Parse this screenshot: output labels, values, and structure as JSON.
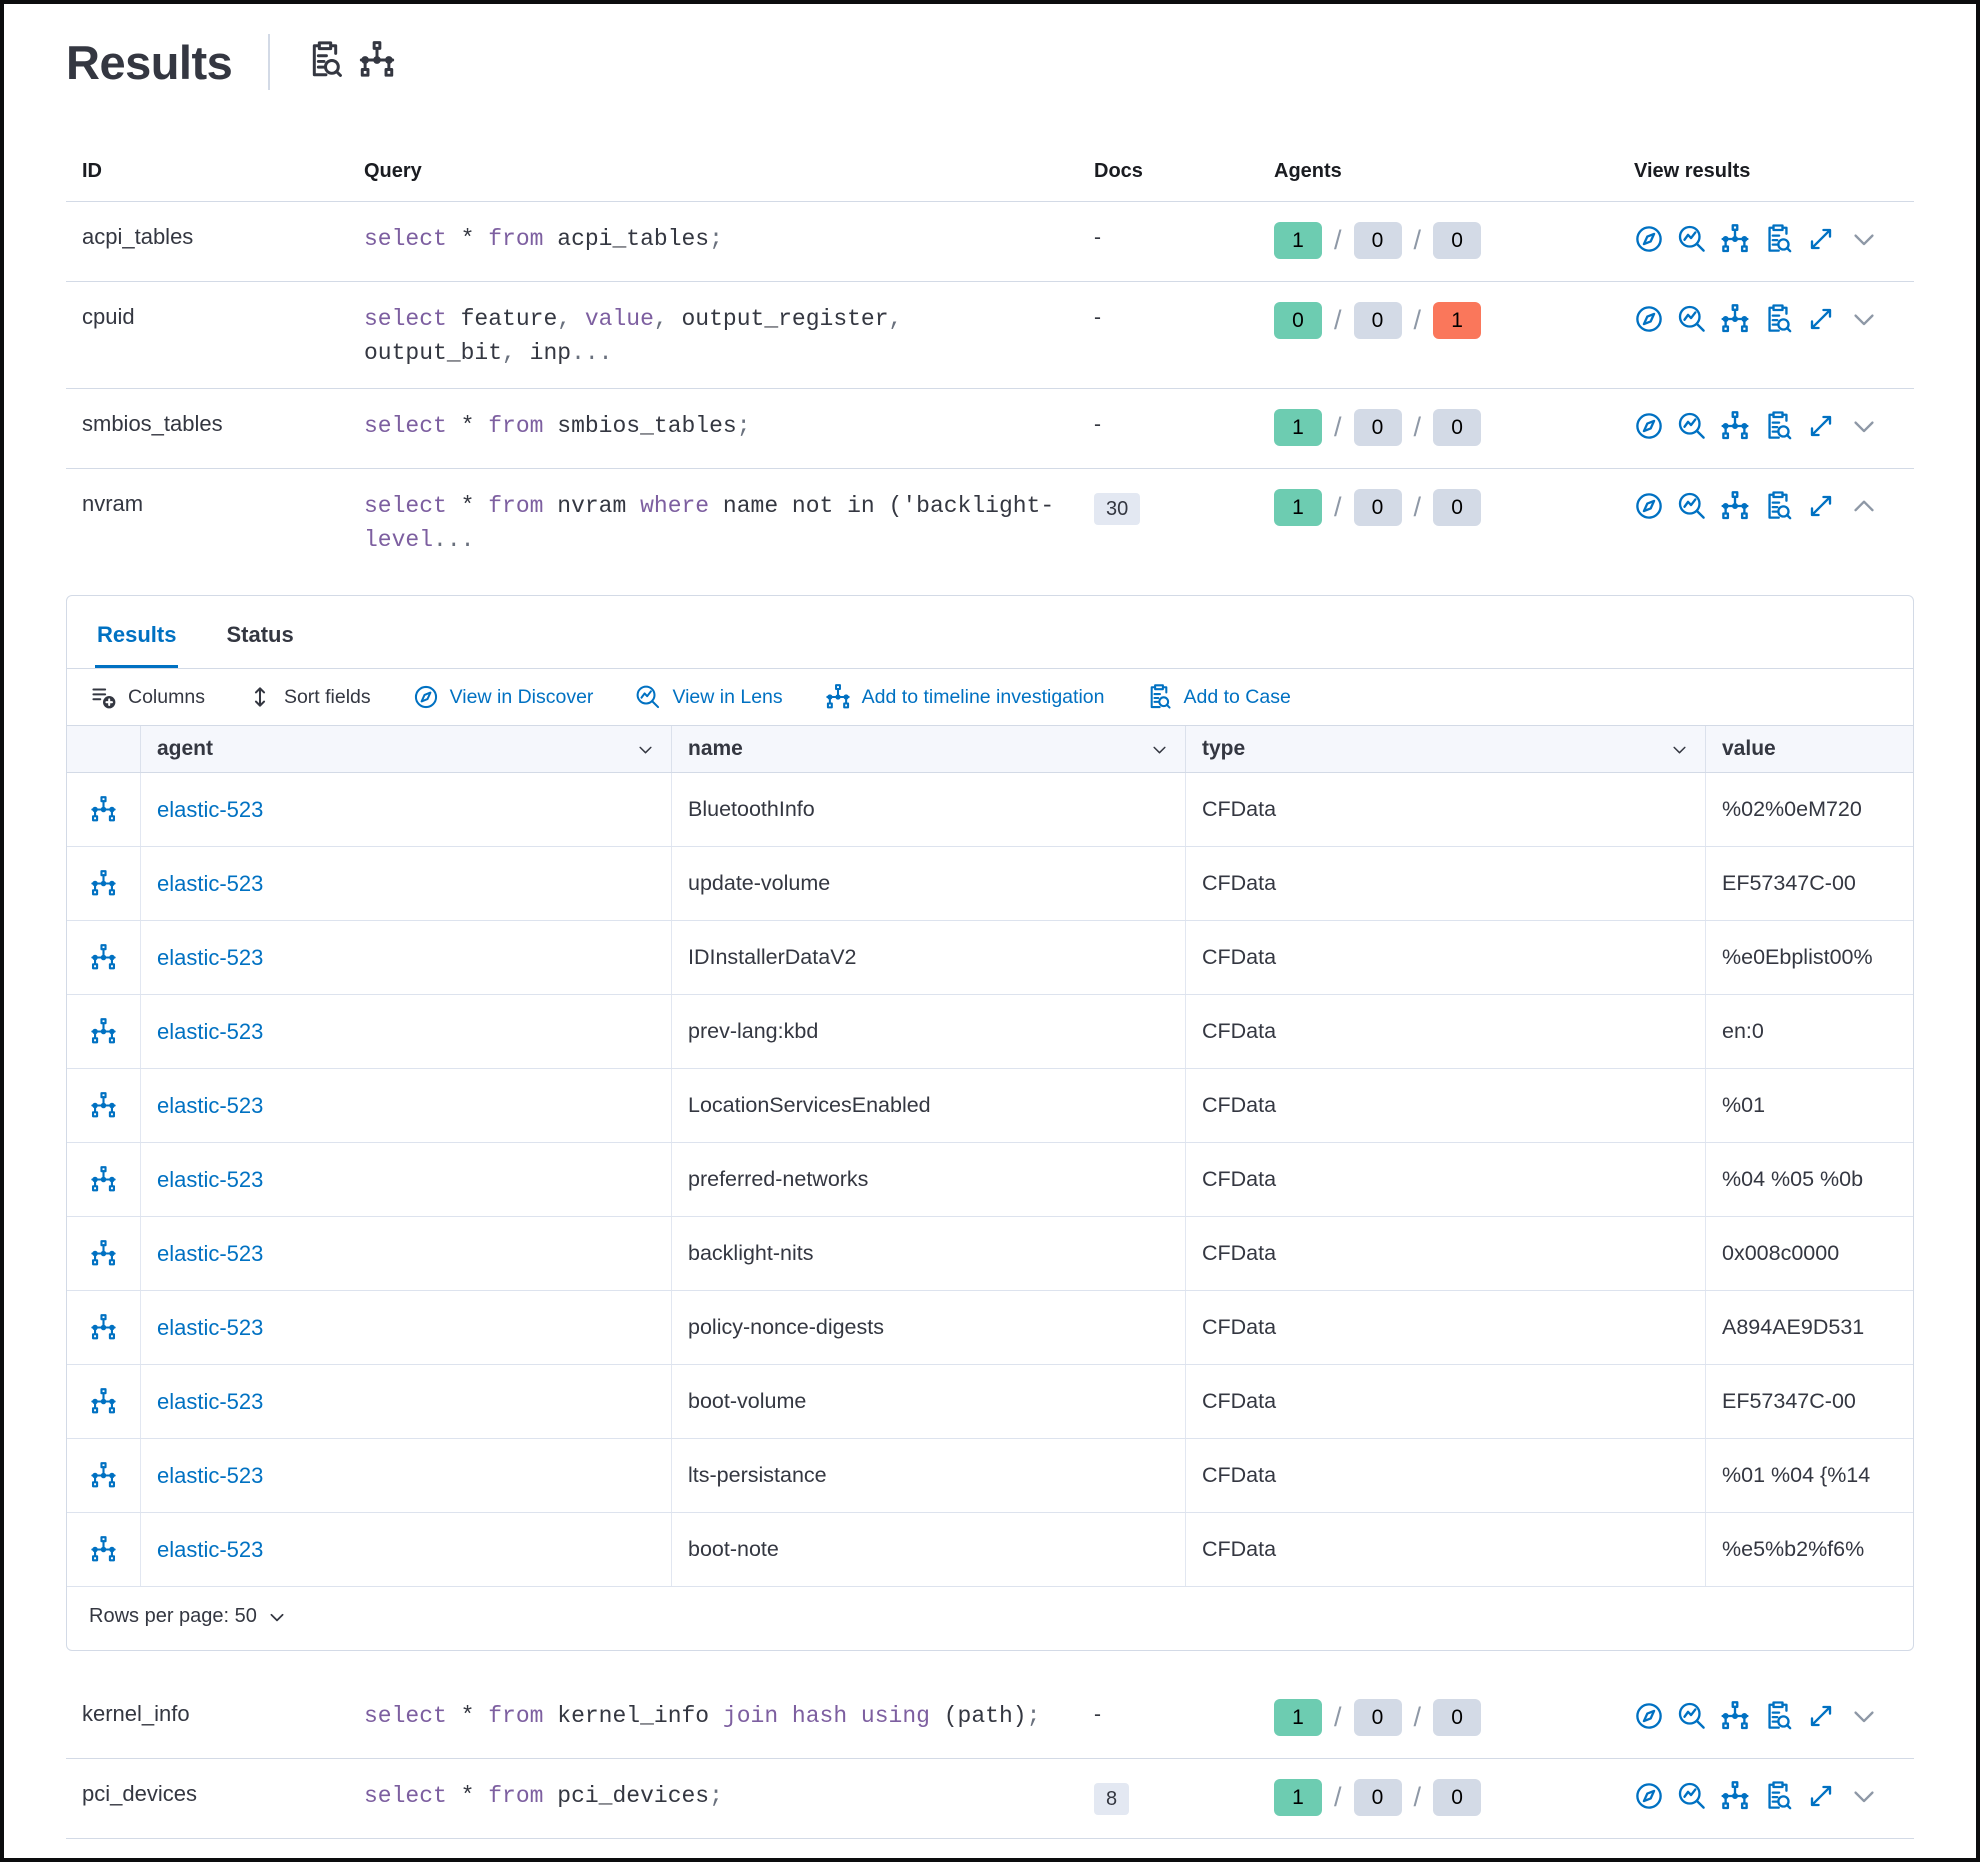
{
  "colors": {
    "primary": "#0071c2",
    "success_badge": "#6dccb1",
    "default_badge": "#d3dae6",
    "danger_badge": "#fa775b",
    "sql_keyword": "#7d5fa0",
    "docs_badge_bg": "#e3e8f2"
  },
  "header": {
    "title": "Results",
    "icons": [
      {
        "icon": "case",
        "name": "inspect-queries-icon"
      },
      {
        "icon": "timeline",
        "name": "timeline-icon"
      }
    ]
  },
  "table": {
    "headers": {
      "id": "ID",
      "query": "Query",
      "docs": "Docs",
      "agents": "Agents",
      "view_results": "View results"
    },
    "row_actions": [
      {
        "icon": "discover",
        "name": "view-in-discover-icon"
      },
      {
        "icon": "lens",
        "name": "view-in-lens-icon"
      },
      {
        "icon": "timeline",
        "name": "add-to-timeline-icon"
      },
      {
        "icon": "case",
        "name": "add-to-case-icon"
      },
      {
        "icon": "expand",
        "name": "expand-results-icon"
      }
    ],
    "rows_above_panel": [
      {
        "id": "acpi_tables",
        "query": [
          {
            "c": "kw",
            "t": "select"
          },
          {
            "c": "t",
            "t": " * "
          },
          {
            "c": "kw",
            "t": "from"
          },
          {
            "c": "t",
            "t": " acpi_tables"
          },
          {
            "c": "p",
            "t": ";"
          }
        ],
        "docs": {
          "text": "-",
          "badge": false
        },
        "agents": [
          {
            "value": "1",
            "state": "success"
          },
          {
            "value": "0",
            "state": "default"
          },
          {
            "value": "0",
            "state": "default"
          }
        ],
        "expanded": false
      },
      {
        "id": "cpuid",
        "query": [
          {
            "c": "kw",
            "t": "select"
          },
          {
            "c": "t",
            "t": " feature"
          },
          {
            "c": "p",
            "t": ","
          },
          {
            "c": "t",
            "t": " "
          },
          {
            "c": "kw",
            "t": "value"
          },
          {
            "c": "p",
            "t": ","
          },
          {
            "c": "t",
            "t": " output_register"
          },
          {
            "c": "p",
            "t": ","
          },
          {
            "c": "t",
            "t": " output_bit"
          },
          {
            "c": "p",
            "t": ","
          },
          {
            "c": "t",
            "t": " inp"
          },
          {
            "c": "p",
            "t": "..."
          }
        ],
        "docs": {
          "text": "-",
          "badge": false
        },
        "agents": [
          {
            "value": "0",
            "state": "success"
          },
          {
            "value": "0",
            "state": "default"
          },
          {
            "value": "1",
            "state": "danger"
          }
        ],
        "expanded": false
      },
      {
        "id": "smbios_tables",
        "query": [
          {
            "c": "kw",
            "t": "select"
          },
          {
            "c": "t",
            "t": " * "
          },
          {
            "c": "kw",
            "t": "from"
          },
          {
            "c": "t",
            "t": " smbios_tables"
          },
          {
            "c": "p",
            "t": ";"
          }
        ],
        "docs": {
          "text": "-",
          "badge": false
        },
        "agents": [
          {
            "value": "1",
            "state": "success"
          },
          {
            "value": "0",
            "state": "default"
          },
          {
            "value": "0",
            "state": "default"
          }
        ],
        "expanded": false
      },
      {
        "id": "nvram",
        "query": [
          {
            "c": "kw",
            "t": "select"
          },
          {
            "c": "t",
            "t": " * "
          },
          {
            "c": "kw",
            "t": "from"
          },
          {
            "c": "t",
            "t": " nvram "
          },
          {
            "c": "kw",
            "t": "where"
          },
          {
            "c": "t",
            "t": " name not in ('backlight-"
          },
          {
            "c": "kw",
            "t": "level"
          },
          {
            "c": "p",
            "t": "..."
          }
        ],
        "docs": {
          "text": "30",
          "badge": true
        },
        "agents": [
          {
            "value": "1",
            "state": "success"
          },
          {
            "value": "0",
            "state": "default"
          },
          {
            "value": "0",
            "state": "default"
          }
        ],
        "expanded": true
      }
    ],
    "rows_below_panel": [
      {
        "id": "kernel_info",
        "query": [
          {
            "c": "kw",
            "t": "select"
          },
          {
            "c": "t",
            "t": " * "
          },
          {
            "c": "kw",
            "t": "from"
          },
          {
            "c": "t",
            "t": " kernel_info "
          },
          {
            "c": "kw",
            "t": "join hash using"
          },
          {
            "c": "t",
            "t": " (path)"
          },
          {
            "c": "p",
            "t": ";"
          }
        ],
        "docs": {
          "text": "-",
          "badge": false
        },
        "agents": [
          {
            "value": "1",
            "state": "success"
          },
          {
            "value": "0",
            "state": "default"
          },
          {
            "value": "0",
            "state": "default"
          }
        ],
        "expanded": false
      },
      {
        "id": "pci_devices",
        "query": [
          {
            "c": "kw",
            "t": "select"
          },
          {
            "c": "t",
            "t": " * "
          },
          {
            "c": "kw",
            "t": "from"
          },
          {
            "c": "t",
            "t": " pci_devices"
          },
          {
            "c": "p",
            "t": ";"
          }
        ],
        "docs": {
          "text": "8",
          "badge": true
        },
        "agents": [
          {
            "value": "1",
            "state": "success"
          },
          {
            "value": "0",
            "state": "default"
          },
          {
            "value": "0",
            "state": "default"
          }
        ],
        "expanded": false
      }
    ]
  },
  "panel": {
    "tabs": [
      {
        "label": "Results",
        "active": true
      },
      {
        "label": "Status",
        "active": false
      }
    ],
    "toolbar": [
      {
        "label": "Columns",
        "icon": "columns",
        "style": "dark",
        "name": "columns-button"
      },
      {
        "label": "Sort fields",
        "icon": "sort",
        "style": "dark",
        "name": "sort-fields-button"
      },
      {
        "label": "View in Discover",
        "icon": "discover",
        "style": "primary",
        "name": "view-in-discover-button"
      },
      {
        "label": "View in Lens",
        "icon": "lens",
        "style": "primary",
        "name": "view-in-lens-button"
      },
      {
        "label": "Add to timeline investigation",
        "icon": "timeline",
        "style": "primary",
        "name": "add-to-timeline-button"
      },
      {
        "label": "Add to Case",
        "icon": "case",
        "style": "primary",
        "name": "add-to-case-button"
      }
    ],
    "grid": {
      "columns": [
        {
          "label": "agent",
          "sortable": true
        },
        {
          "label": "name",
          "sortable": true
        },
        {
          "label": "type",
          "sortable": true
        },
        {
          "label": "value",
          "sortable": false
        }
      ],
      "rows": [
        {
          "agent": "elastic-523",
          "name": "BluetoothInfo",
          "type": "CFData",
          "value": "%02%0eM720"
        },
        {
          "agent": "elastic-523",
          "name": "update-volume",
          "type": "CFData",
          "value": "EF57347C-00"
        },
        {
          "agent": "elastic-523",
          "name": "IDInstallerDataV2",
          "type": "CFData",
          "value": "%e0Ebplist00%"
        },
        {
          "agent": "elastic-523",
          "name": "prev-lang:kbd",
          "type": "CFData",
          "value": "en:0"
        },
        {
          "agent": "elastic-523",
          "name": "LocationServicesEnabled",
          "type": "CFData",
          "value": "%01"
        },
        {
          "agent": "elastic-523",
          "name": "preferred-networks",
          "type": "CFData",
          "value": "%04 %05 %0b"
        },
        {
          "agent": "elastic-523",
          "name": "backlight-nits",
          "type": "CFData",
          "value": "0x008c0000"
        },
        {
          "agent": "elastic-523",
          "name": "policy-nonce-digests",
          "type": "CFData",
          "value": "A894AE9D531"
        },
        {
          "agent": "elastic-523",
          "name": "boot-volume",
          "type": "CFData",
          "value": "EF57347C-00"
        },
        {
          "agent": "elastic-523",
          "name": "lts-persistance",
          "type": "CFData",
          "value": "%01 %04 {%14"
        },
        {
          "agent": "elastic-523",
          "name": "boot-note",
          "type": "CFData",
          "value": "%e5%b2%f6%"
        }
      ]
    },
    "footer": {
      "rows_per_page": "Rows per page: 50"
    }
  }
}
